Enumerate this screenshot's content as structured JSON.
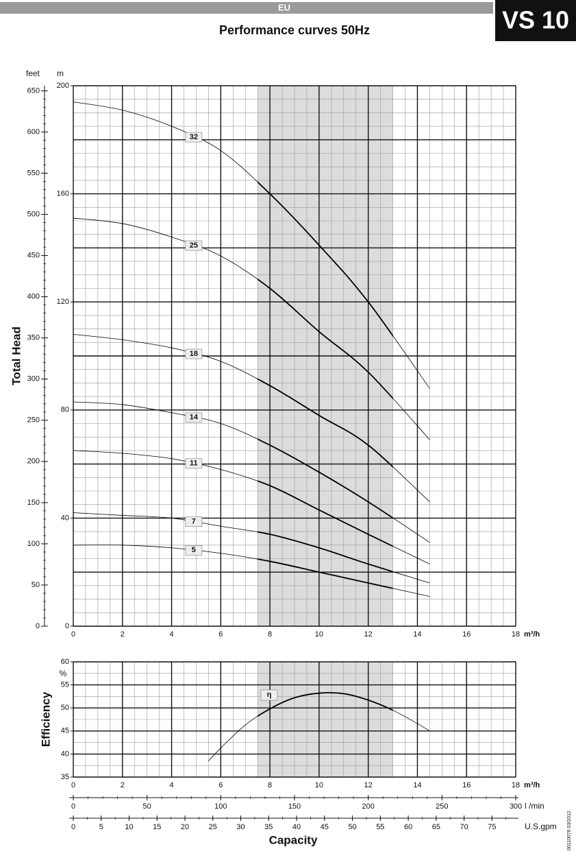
{
  "header": {
    "region": "EU",
    "model": "VS 10"
  },
  "doc_code": "00110076  03/2012",
  "chart_data": [
    {
      "type": "line",
      "title": "Performance curves 50Hz",
      "ylabel": "Total Head",
      "yunit": "m",
      "y2unit": "feet",
      "xunit": "m³/h",
      "x": [
        0,
        2,
        4,
        6,
        8,
        10,
        12,
        14.5
      ],
      "xlim": [
        0,
        18
      ],
      "xticks": [
        0,
        2,
        4,
        6,
        8,
        10,
        12,
        14,
        16,
        18
      ],
      "ylim": [
        0,
        200
      ],
      "yticks": [
        0,
        40,
        80,
        120,
        160,
        200
      ],
      "y2lim": [
        0,
        656.17
      ],
      "y2ticks": [
        0,
        50,
        100,
        150,
        200,
        250,
        300,
        350,
        400,
        450,
        500,
        550,
        600,
        650
      ],
      "y2_minor_step": 10,
      "highlight_x": [
        7.5,
        13
      ],
      "minor_grid": {
        "x": 0.5,
        "y": 5
      },
      "grid_y_major_step": 20,
      "series": [
        {
          "name": "32",
          "color": "#000000",
          "values": [
            194,
            191,
            185,
            176,
            160,
            141,
            120,
            88
          ]
        },
        {
          "name": "25",
          "color": "#000000",
          "values": [
            151,
            149,
            144,
            137,
            125,
            109,
            94,
            69
          ]
        },
        {
          "name": "18",
          "color": "#000000",
          "values": [
            108,
            106,
            103,
            98,
            89,
            78,
            67,
            46
          ]
        },
        {
          "name": "14",
          "color": "#000000",
          "values": [
            83,
            82,
            79,
            75,
            67,
            57,
            46,
            31
          ]
        },
        {
          "name": "11",
          "color": "#000000",
          "values": [
            65,
            64,
            62,
            58,
            52,
            43,
            34,
            23
          ]
        },
        {
          "name": "7",
          "color": "#000000",
          "values": [
            42,
            41,
            40,
            37,
            34,
            29,
            23,
            16
          ]
        },
        {
          "name": "5",
          "color": "#000000",
          "values": [
            30,
            30,
            29,
            27,
            24,
            20,
            16,
            11
          ]
        }
      ]
    },
    {
      "type": "line",
      "ylabel": "Efficiency",
      "yunit": "%",
      "xunit": "m³/h",
      "xlabel": "Capacity",
      "x": [
        5.5,
        6,
        7,
        8,
        9,
        10,
        11,
        12,
        13,
        14,
        14.5
      ],
      "xlim": [
        0,
        18
      ],
      "xticks": [
        0,
        2,
        4,
        6,
        8,
        10,
        12,
        14,
        16,
        18
      ],
      "ylim": [
        35,
        60
      ],
      "yticks": [
        35,
        40,
        45,
        50,
        55,
        60
      ],
      "highlight_x": [
        7.5,
        13
      ],
      "minor_grid": {
        "x": 0.5,
        "y": 2.5
      },
      "grid_y_major_step": 5,
      "series": [
        {
          "name": "η",
          "color": "#000000",
          "values": [
            38.5,
            41.3,
            46.3,
            49.8,
            52.2,
            53.2,
            53.1,
            51.7,
            49.5,
            46.6,
            45
          ]
        }
      ],
      "secondary_x_axes": [
        {
          "unit": "l /min",
          "xlim": [
            0,
            300
          ],
          "xticks": [
            0,
            50,
            100,
            150,
            200,
            250,
            300
          ],
          "minor_step": 10
        },
        {
          "unit": "U.S.gpm",
          "xlim": [
            0,
            79.25
          ],
          "xticks": [
            0,
            5,
            10,
            15,
            20,
            25,
            30,
            35,
            40,
            45,
            50,
            55,
            60,
            65,
            70,
            75
          ],
          "minor_step": 2.5
        }
      ]
    }
  ]
}
